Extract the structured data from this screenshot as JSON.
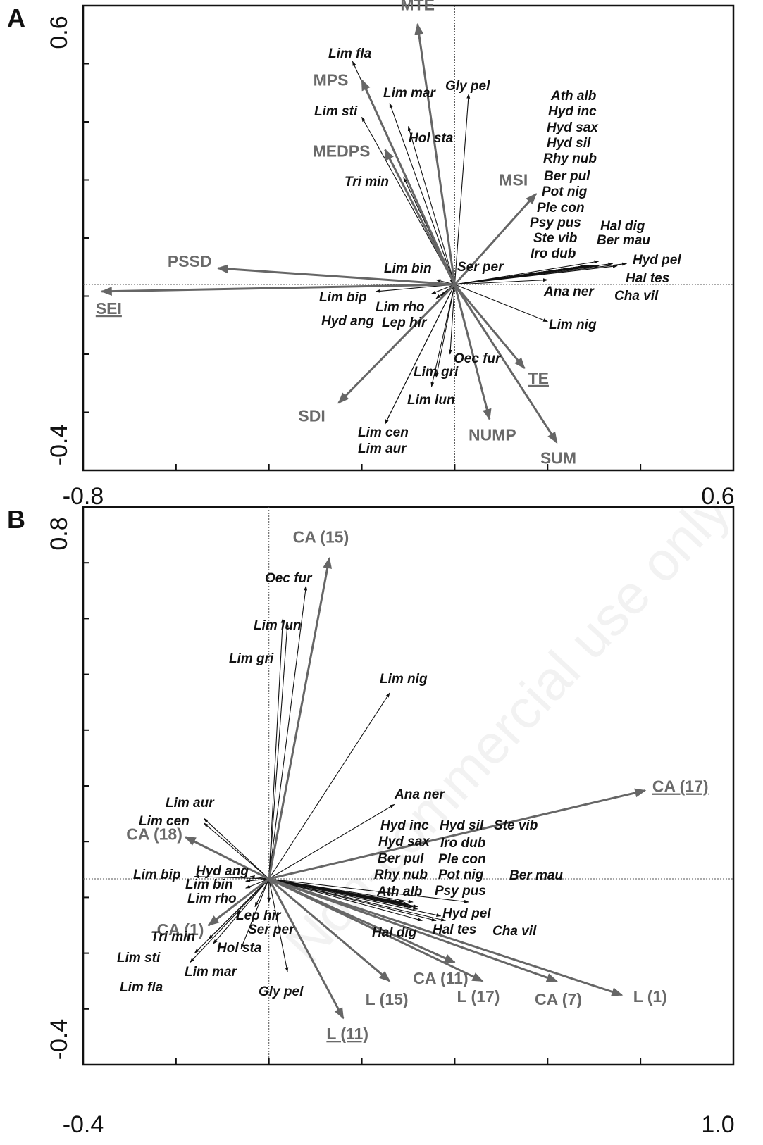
{
  "watermark": "Non-commercial use only",
  "chart_data": [
    {
      "panel": "A",
      "type": "scatter",
      "xlim": [
        -0.8,
        0.6
      ],
      "ylim": [
        -0.4,
        0.6
      ],
      "x_tick_labels": [
        "-0.8",
        "0.6"
      ],
      "y_tick_labels": [
        "-0.4",
        "0.6"
      ],
      "env_vectors": [
        {
          "name": "MTE",
          "x": -0.08,
          "y": 0.56
        },
        {
          "name": "MPS",
          "x": -0.2,
          "y": 0.44
        },
        {
          "name": "MEDPS",
          "x": -0.15,
          "y": 0.29
        },
        {
          "name": "MSI",
          "x": 0.175,
          "y": 0.195
        },
        {
          "name": "PSSD",
          "x": -0.51,
          "y": 0.035
        },
        {
          "name": "SEI",
          "x": -0.76,
          "y": -0.015,
          "underline": true
        },
        {
          "name": "TE",
          "x": 0.15,
          "y": -0.18,
          "underline": true
        },
        {
          "name": "SDI",
          "x": -0.25,
          "y": -0.255
        },
        {
          "name": "NUMP",
          "x": 0.075,
          "y": -0.29
        },
        {
          "name": "SUM",
          "x": 0.22,
          "y": -0.34
        }
      ],
      "species_vectors": [
        {
          "name": "Lim fla",
          "x": -0.22,
          "y": 0.48
        },
        {
          "name": "Lim mar",
          "x": -0.14,
          "y": 0.39
        },
        {
          "name": "Gly pel",
          "x": 0.03,
          "y": 0.41
        },
        {
          "name": "Lim sti",
          "x": -0.2,
          "y": 0.36
        },
        {
          "name": "Hol sta",
          "x": -0.1,
          "y": 0.34
        },
        {
          "name": "Tri min",
          "x": -0.11,
          "y": 0.23
        },
        {
          "name": "Ath alb",
          "x": 0.28,
          "y": 0.04
        },
        {
          "name": "Hyd inc",
          "x": 0.28,
          "y": 0.04
        },
        {
          "name": "Hyd sax",
          "x": 0.28,
          "y": 0.04
        },
        {
          "name": "Hyd sil",
          "x": 0.28,
          "y": 0.04
        },
        {
          "name": "Rhy nub",
          "x": 0.28,
          "y": 0.04
        },
        {
          "name": "Ber pul",
          "x": 0.29,
          "y": 0.04
        },
        {
          "name": "Pot nig",
          "x": 0.29,
          "y": 0.04
        },
        {
          "name": "Ple con",
          "x": 0.29,
          "y": 0.04
        },
        {
          "name": "Psy pus",
          "x": 0.29,
          "y": 0.04
        },
        {
          "name": "Ste vib",
          "x": 0.3,
          "y": 0.04
        },
        {
          "name": "Iro dub",
          "x": 0.3,
          "y": 0.04
        },
        {
          "name": "Hal dig",
          "x": 0.31,
          "y": 0.05
        },
        {
          "name": "Ber mau",
          "x": 0.31,
          "y": 0.04
        },
        {
          "name": "Hyd pel",
          "x": 0.37,
          "y": 0.045
        },
        {
          "name": "Hal tes",
          "x": 0.34,
          "y": 0.045
        },
        {
          "name": "Cha vil",
          "x": 0.35,
          "y": 0.04
        },
        {
          "name": "Ana ner",
          "x": 0.2,
          "y": 0.01
        },
        {
          "name": "Lim nig",
          "x": 0.2,
          "y": -0.08
        },
        {
          "name": "Lim bin",
          "x": -0.04,
          "y": 0.01
        },
        {
          "name": "Ser per",
          "x": -0.01,
          "y": 0.01
        },
        {
          "name": "Lim bip",
          "x": -0.17,
          "y": -0.015
        },
        {
          "name": "Lim rho",
          "x": -0.04,
          "y": -0.03
        },
        {
          "name": "Hyd ang",
          "x": -0.05,
          "y": -0.02
        },
        {
          "name": "Lep hir",
          "x": -0.03,
          "y": -0.025
        },
        {
          "name": "Oec fur",
          "x": -0.01,
          "y": -0.15
        },
        {
          "name": "Lim gri",
          "x": -0.04,
          "y": -0.2
        },
        {
          "name": "Lim lun",
          "x": -0.05,
          "y": -0.22
        },
        {
          "name": "Lim cen",
          "x": -0.15,
          "y": -0.3
        },
        {
          "name": "Lim aur",
          "x": -0.15,
          "y": -0.3
        }
      ]
    },
    {
      "panel": "B",
      "type": "scatter",
      "xlim": [
        -0.4,
        1.0
      ],
      "ylim": [
        -0.4,
        0.8
      ],
      "x_tick_labels": [
        "-0.4",
        "1.0"
      ],
      "y_tick_labels": [
        "-0.4",
        "0.8"
      ],
      "env_vectors": [
        {
          "name": "CA (15)",
          "x": 0.13,
          "y": 0.69
        },
        {
          "name": "CA (17)",
          "x": 0.81,
          "y": 0.19,
          "underline": true
        },
        {
          "name": "CA (18)",
          "x": -0.18,
          "y": 0.09
        },
        {
          "name": "CA (1)",
          "x": -0.13,
          "y": -0.1
        },
        {
          "name": "CA (11)",
          "x": 0.4,
          "y": -0.18
        },
        {
          "name": "CA (7)",
          "x": 0.62,
          "y": -0.22
        },
        {
          "name": "L (1)",
          "x": 0.76,
          "y": -0.25
        },
        {
          "name": "L (17)",
          "x": 0.46,
          "y": -0.22
        },
        {
          "name": "L (15)",
          "x": 0.26,
          "y": -0.22
        },
        {
          "name": "L (11)",
          "x": 0.16,
          "y": -0.3,
          "underline": true
        }
      ],
      "species_vectors": [
        {
          "name": "Oec fur",
          "x": 0.08,
          "y": 0.63
        },
        {
          "name": "Lim lun",
          "x": 0.03,
          "y": 0.56
        },
        {
          "name": "Lim gri",
          "x": 0.04,
          "y": 0.55
        },
        {
          "name": "Lim nig",
          "x": 0.26,
          "y": 0.4
        },
        {
          "name": "Ana ner",
          "x": 0.27,
          "y": 0.16
        },
        {
          "name": "Lim aur",
          "x": -0.14,
          "y": 0.13
        },
        {
          "name": "Lim cen",
          "x": -0.14,
          "y": 0.12
        },
        {
          "name": "Hyd inc",
          "x": 0.28,
          "y": -0.05
        },
        {
          "name": "Hyd sil",
          "x": 0.29,
          "y": -0.05
        },
        {
          "name": "Ste vib",
          "x": 0.31,
          "y": -0.05
        },
        {
          "name": "Hyd sax",
          "x": 0.28,
          "y": -0.05
        },
        {
          "name": "Iro dub",
          "x": 0.29,
          "y": -0.055
        },
        {
          "name": "Ber pul",
          "x": 0.3,
          "y": -0.055
        },
        {
          "name": "Ple con",
          "x": 0.3,
          "y": -0.055
        },
        {
          "name": "Rhy nub",
          "x": 0.31,
          "y": -0.06
        },
        {
          "name": "Pot nig",
          "x": 0.32,
          "y": -0.06
        },
        {
          "name": "Ber mau",
          "x": 0.43,
          "y": -0.05
        },
        {
          "name": "Ath alb",
          "x": 0.3,
          "y": -0.06
        },
        {
          "name": "Psy pus",
          "x": 0.32,
          "y": -0.065
        },
        {
          "name": "Hyd pel",
          "x": 0.37,
          "y": -0.08
        },
        {
          "name": "Hal tes",
          "x": 0.36,
          "y": -0.09
        },
        {
          "name": "Cha vil",
          "x": 0.38,
          "y": -0.09
        },
        {
          "name": "Hal dig",
          "x": 0.33,
          "y": -0.09
        },
        {
          "name": "Lim bip",
          "x": -0.16,
          "y": 0.005
        },
        {
          "name": "Hyd ang",
          "x": -0.04,
          "y": 0.005
        },
        {
          "name": "Lim bin",
          "x": -0.05,
          "y": -0.005
        },
        {
          "name": "Lim rho",
          "x": -0.05,
          "y": -0.02
        },
        {
          "name": "Lep hir",
          "x": 0.0,
          "y": -0.05
        },
        {
          "name": "Ser per",
          "x": -0.03,
          "y": -0.06
        },
        {
          "name": "Tri min",
          "x": -0.13,
          "y": -0.13
        },
        {
          "name": "Hol sta",
          "x": -0.06,
          "y": -0.15
        },
        {
          "name": "Lim sti",
          "x": -0.16,
          "y": -0.16
        },
        {
          "name": "Lim mar",
          "x": -0.12,
          "y": -0.14
        },
        {
          "name": "Lim fla",
          "x": -0.17,
          "y": -0.18
        },
        {
          "name": "Gly pel",
          "x": 0.04,
          "y": -0.2
        }
      ]
    }
  ]
}
